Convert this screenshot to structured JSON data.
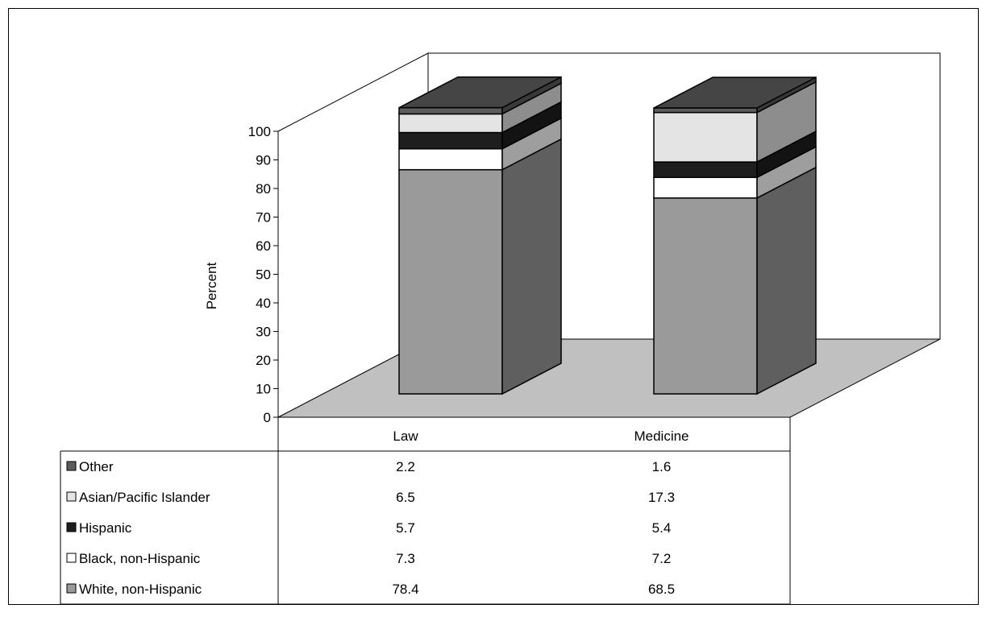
{
  "chart_data": {
    "type": "bar",
    "stacked": true,
    "three_d": true,
    "categories": [
      "Law",
      "Medicine"
    ],
    "series": [
      {
        "name": "White, non-Hispanic",
        "values": [
          78.4,
          68.5
        ],
        "color": "#9a9a9a"
      },
      {
        "name": "Black, non-Hispanic",
        "values": [
          7.3,
          7.2
        ],
        "color": "#ffffff"
      },
      {
        "name": "Hispanic",
        "values": [
          5.7,
          5.4
        ],
        "color": "#1e1e1e"
      },
      {
        "name": "Asian/Pacific Islander",
        "values": [
          6.5,
          17.3
        ],
        "color": "#e4e4e4"
      },
      {
        "name": "Other",
        "values": [
          2.2,
          1.6
        ],
        "color": "#5c5c5c"
      }
    ],
    "ylabel": "Percent",
    "ylim": [
      0,
      100
    ],
    "yticks": [
      "0",
      "10",
      "20",
      "30",
      "40",
      "50",
      "60",
      "70",
      "80",
      "90",
      "100"
    ],
    "data_table": {
      "rows_order": [
        "Other",
        "Asian/Pacific Islander",
        "Hispanic",
        "Black, non-Hispanic",
        "White, non-Hispanic"
      ],
      "cells": [
        [
          "2.2",
          "1.6"
        ],
        [
          "6.5",
          "17.3"
        ],
        [
          "5.7",
          "5.4"
        ],
        [
          "7.3",
          "7.2"
        ],
        [
          "78.4",
          "68.5"
        ]
      ]
    },
    "grid": false,
    "floor_color": "#c0c0c0"
  }
}
